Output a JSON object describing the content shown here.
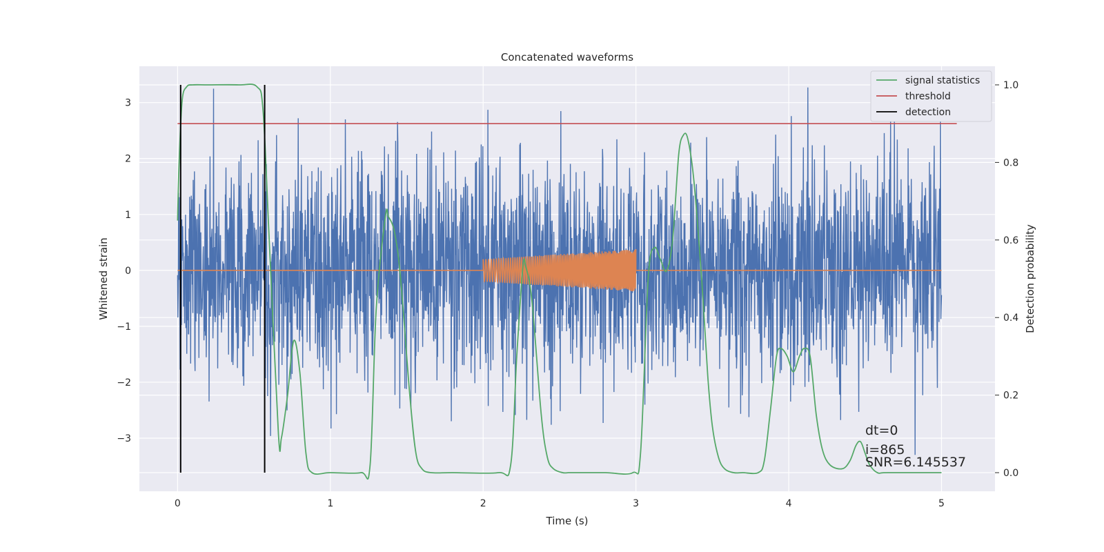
{
  "chart_data": {
    "type": "line",
    "title": "Concatenated waveforms",
    "xlabel": "Time (s)",
    "ylabel": "Whitened strain",
    "ylabel_right": "Detection probability",
    "xlim": [
      -0.25,
      5.35
    ],
    "ylim": [
      -3.95,
      3.65
    ],
    "ylim_right": [
      -0.048,
      1.048
    ],
    "x_ticks": [
      0,
      1,
      2,
      3,
      4,
      5
    ],
    "y_ticks": [
      -3,
      -2,
      -1,
      0,
      1,
      2,
      3
    ],
    "y_ticks_right": [
      0.0,
      0.2,
      0.4,
      0.6,
      0.8,
      1.0
    ],
    "x_tick_labels": [
      "0",
      "1",
      "2",
      "3",
      "4",
      "5"
    ],
    "y_tick_labels": [
      "−3",
      "−2",
      "−1",
      "0",
      "1",
      "2",
      "3"
    ],
    "y_tick_labels_right": [
      "0.0",
      "0.2",
      "0.4",
      "0.6",
      "0.8",
      "1.0"
    ],
    "grid": true,
    "legend_position": "top-right",
    "colors": {
      "strain": "#4c72b0",
      "injected": "#dd8452",
      "signal_statistics": "#55a868",
      "threshold": "#c44e52",
      "detection": "#000000",
      "axes_bg": "#eaeaf2",
      "grid": "#ffffff"
    },
    "series": [
      {
        "name": "signal statistics",
        "axis": "right",
        "x": [
          0.0,
          0.01,
          0.03,
          0.06,
          0.1,
          0.2,
          0.4,
          0.52,
          0.56,
          0.6,
          0.66,
          0.68,
          0.72,
          0.76,
          0.8,
          0.84,
          0.88,
          1.0,
          1.2,
          1.26,
          1.3,
          1.36,
          1.38,
          1.42,
          1.46,
          1.52,
          1.56,
          1.6,
          1.66,
          1.8,
          2.1,
          2.18,
          2.22,
          2.26,
          2.28,
          2.32,
          2.38,
          2.42,
          2.46,
          2.52,
          2.56,
          2.6,
          2.8,
          2.98,
          3.03,
          3.08,
          3.12,
          3.16,
          3.2,
          3.24,
          3.28,
          3.31,
          3.34,
          3.38,
          3.43,
          3.47,
          3.5,
          3.54,
          3.58,
          3.64,
          3.7,
          3.8,
          3.84,
          3.88,
          3.92,
          3.95,
          3.99,
          4.03,
          4.07,
          4.1,
          4.14,
          4.18,
          4.22,
          4.27,
          4.35,
          4.4,
          4.44,
          4.47,
          4.5,
          4.53,
          4.58,
          4.65,
          5.0
        ],
        "values": [
          0.65,
          0.8,
          0.96,
          0.995,
          1.0,
          1.0,
          1.0,
          0.995,
          0.93,
          0.6,
          0.1,
          0.09,
          0.2,
          0.34,
          0.26,
          0.05,
          0.0,
          0.0,
          0.0,
          0.02,
          0.42,
          0.66,
          0.66,
          0.62,
          0.5,
          0.2,
          0.05,
          0.01,
          0.0,
          0.0,
          0.0,
          0.02,
          0.3,
          0.53,
          0.53,
          0.44,
          0.15,
          0.04,
          0.01,
          0.0,
          0.0,
          0.0,
          0.0,
          0.0,
          0.05,
          0.5,
          0.58,
          0.55,
          0.52,
          0.6,
          0.82,
          0.87,
          0.86,
          0.75,
          0.5,
          0.25,
          0.12,
          0.04,
          0.01,
          0.0,
          0.0,
          0.0,
          0.03,
          0.16,
          0.3,
          0.32,
          0.3,
          0.26,
          0.3,
          0.32,
          0.3,
          0.15,
          0.06,
          0.02,
          0.01,
          0.03,
          0.07,
          0.08,
          0.05,
          0.02,
          0.0,
          0.0,
          0.0
        ]
      },
      {
        "name": "threshold",
        "axis": "right",
        "x": [
          0.0,
          5.1
        ],
        "values": [
          0.9,
          0.9
        ]
      },
      {
        "name": "detection",
        "axis": "right",
        "x": [
          0.02,
          0.57
        ],
        "values": [
          1.0,
          1.0
        ],
        "ymin": 0.0
      },
      {
        "name": "",
        "axis": "left",
        "x": [
          0.0,
          5.0
        ],
        "y_range": [
          -3.3,
          3.3
        ],
        "kind": "noise"
      },
      {
        "name": "",
        "axis": "left",
        "x": [
          0.0,
          2.0,
          3.0,
          5.0
        ],
        "values": [
          0.0,
          0.0,
          0.0,
          0.0
        ],
        "chirp": [
          2.0,
          3.0
        ],
        "amplitude": [
          0.2,
          0.38
        ]
      }
    ],
    "annotations": [
      "dt=0",
      "i=865",
      "SNR=6.145537"
    ]
  }
}
